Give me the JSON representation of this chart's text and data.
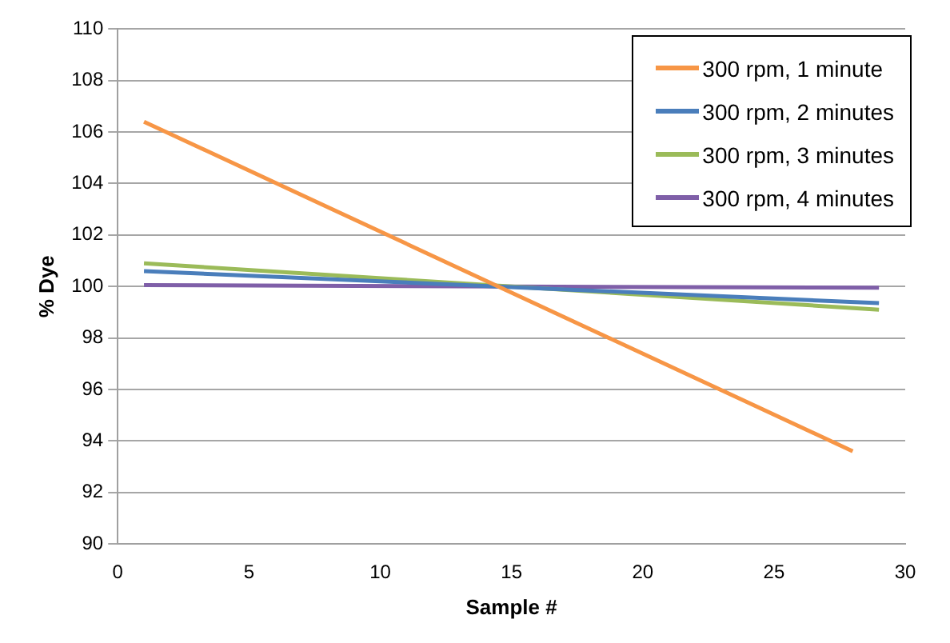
{
  "chart_data": {
    "type": "line",
    "xlabel": "Sample #",
    "ylabel": "% Dye",
    "xlim": [
      0,
      30
    ],
    "xticks": [
      0,
      5,
      10,
      15,
      20,
      25,
      30
    ],
    "ylim": [
      90,
      110
    ],
    "yticks": [
      90,
      92,
      94,
      96,
      98,
      100,
      102,
      104,
      106,
      108,
      110
    ],
    "grid": "y",
    "legend": "top right",
    "marker": "none",
    "line_style": "solid",
    "series": [
      {
        "name": "300 rpm, 1 minute",
        "color": "#f79646",
        "x": [
          1,
          28
        ],
        "values": [
          106.4,
          93.6
        ]
      },
      {
        "name": "300 rpm, 2 minutes",
        "color": "#4a7ebb",
        "x": [
          1,
          29
        ],
        "values": [
          100.6,
          99.35
        ]
      },
      {
        "name": "300 rpm, 3 minutes",
        "color": "#9bbb59",
        "x": [
          1,
          29
        ],
        "values": [
          100.9,
          99.1
        ]
      },
      {
        "name": "300 rpm, 4 minutes",
        "color": "#7f5fa8",
        "x": [
          1,
          29
        ],
        "values": [
          100.05,
          99.95
        ]
      }
    ]
  }
}
